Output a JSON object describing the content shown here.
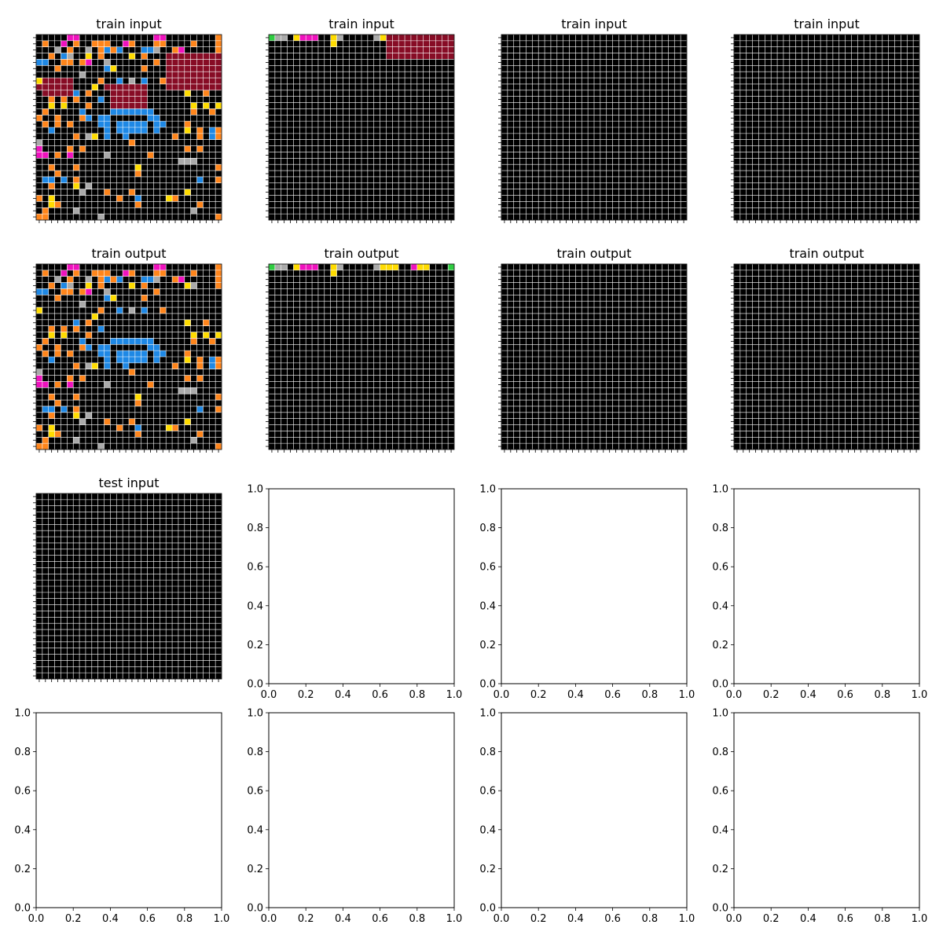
{
  "figure": {
    "palette": [
      "#000000",
      "#1E88E5",
      "#E53935",
      "#2ECC40",
      "#FFDC00",
      "#AAAAAA",
      "#F012BE",
      "#FF851B",
      "#7FDBFF",
      "#870C25"
    ],
    "grid_line_color": "#FFFFFF"
  },
  "chart_data": [
    {
      "type": "heatmap",
      "title": "train input",
      "grid_cells": 30,
      "rows": [
        "000006600000000000066000000007",
        "070060700777006700077000070007",
        "000507005071710001150076000007",
        "007015004070000407000999999999",
        "110077076005000000070999999999",
        "000700000001400007000999999999",
        "000000050000000000000999999999",
        "499999000070010501007999999999",
        "999999000409999999000999999999",
        "099999107000999999000000400700",
        "007070700010999999000000000000",
        "004040007000999999000000040404",
        "070000010000111111100000070070",
        "700700071011000000110000000000",
        "070707000011011111011000700000",
        "001000000001011111010000407017",
        "000000705401001000000070007017",
        "500000000000000700000000000000",
        "600007070000000000000000707000",
        "660706000005000000700000000000",
        "000000000000000000000005550000",
        "007000700000000040000000000007",
        "000700000000000070000000000000",
        "011010700000000000000000001007",
        "007000405000000000000000000000",
        "000000050007000700000000400000",
        "704000000000070010000470000000",
        "004700000000000070000000007000",
        "070000500000000000000000050000",
        "770000000050000000000000000007"
      ]
    },
    {
      "type": "heatmap",
      "title": "train input",
      "grid_cells": 30,
      "rows": [
        "355046660045000005499999999999",
        "000000000040000000099999999999",
        "000000000000000000099999999999",
        "000000000000000000099999999999",
        "000000000000000000000000000000",
        "000000000000000000000000000000",
        "000000000000000000000000000000",
        "000000000000000000000000000000",
        "000000000000000000000000000000",
        "000000000000000000000000000000",
        "000000000000000000000000000000",
        "000000000000000000000000000000",
        "000000000000000000000000000000",
        "000000000000000000000000000000",
        "000000000000000000000000000000",
        "000000000000000000000000000000",
        "000000000000000000000000000000",
        "000000000000000000000000000000",
        "000000000000000000000000000000",
        "000000000000000000000000000000",
        "000000000000000000000000000000",
        "000000000000000000000000000000",
        "000000000000000000000000000000",
        "000000000000000000000000000000",
        "000000000000000000000000000000",
        "000000000000000000000000000000",
        "000000000000000000000000000000",
        "000000000000000000000000000000",
        "000000000000000000000000000000",
        "000000000000000000000000000000"
      ]
    },
    {
      "type": "heatmap",
      "title": "train input",
      "grid_cells": 30,
      "rows": [
        "000000000000000000000000000000",
        "000000000000000000000000000000",
        "000000000000000000000000000000",
        "000000000000000000000000000000",
        "000000000000000000000000000000",
        "000000000000000000000000000000",
        "000000000000000000000000000000",
        "000000000000000000000000000000",
        "000000000000000000000000000000",
        "000000000000000000000000000000",
        "000000000000000000000000000000",
        "000000000000000000000000000000",
        "000000000000000000000000000000",
        "000000000000000000000000000000",
        "000000000000000000000000000000",
        "000000000000000000000000000000",
        "000000000000000000000000000000",
        "000000000000000000000000000000",
        "000000000000000000000000000000",
        "000000000000000000000000000000",
        "000000000000000000000000000000",
        "000000000000000000000000000000",
        "000000000000000000000000000000",
        "000000000000000000000000000000",
        "000000000000000000000000000000",
        "000000000000000000000000000000",
        "000000000000000000000000000000",
        "000000000000000000000000000000",
        "000000000000000000000000000000",
        "000000000000000000000000000000"
      ]
    },
    {
      "type": "heatmap",
      "title": "train input",
      "grid_cells": 30,
      "rows": [
        "000000000000000000000000000000",
        "000000000000000000000000000000",
        "000000000000000000000000000000",
        "000000000000000000000000000000",
        "000000000000000000000000000000",
        "000000000000000000000000000000",
        "000000000000000000000000000000",
        "000000000000000000000000000000",
        "000000000000000000000000000000",
        "000000000000000000000000000000",
        "000000000000000000000000000000",
        "000000000000000000000000000000",
        "000000000000000000000000000000",
        "000000000000000000000000000000",
        "000000000000000000000000000000",
        "000000000000000000000000000000",
        "000000000000000000000000000000",
        "000000000000000000000000000000",
        "000000000000000000000000000000",
        "000000000000000000000000000000",
        "000000000000000000000000000000",
        "000000000000000000000000000000",
        "000000000000000000000000000000",
        "000000000000000000000000000000",
        "000000000000000000000000000000",
        "000000000000000000000000000000",
        "000000000000000000000000000000",
        "000000000000000000000000000000",
        "000000000000000000000000000000",
        "000000000000000000000000000000"
      ]
    },
    {
      "type": "heatmap",
      "title": "train output",
      "grid_cells": 30,
      "rows": [
        "000006600000000000066000000007",
        "070060700777006700077000070007",
        "000507005071710001150076000007",
        "007015004070000407000000450007",
        "110077076005000000070000000000",
        "000700000001400007000000000000",
        "000000050000000000000000000000",
        "400000000070010501007000000000",
        "000000000400000000000000000000",
        "000000107000000000000000400700",
        "007070700010000000000000000000",
        "004040007000000000000000040404",
        "070000010000111111100000070070",
        "700700071011000000110000000000",
        "070707000011011111011000700000",
        "001000000001011111010000407017",
        "000000705401001000000070007017",
        "500000000000000700000000000000",
        "600007070000000000000000707000",
        "660706000005000000700000000000",
        "000000000000000000000005550000",
        "007000700000000040000000000007",
        "000700000000000070000000000000",
        "011010700000000000000000001007",
        "007000405000000000000000000000",
        "000000050007000700000000400000",
        "704000000000070010000470000000",
        "004700000000000070000000007000",
        "070000500000000000000000050000",
        "770000000050000000000000000007"
      ]
    },
    {
      "type": "heatmap",
      "title": "train output",
      "grid_cells": 30,
      "rows": [
        "355046660045000005444006440003",
        "000000000040000000000000000000",
        "000000000000000000000000000000",
        "000000000000000000000000000000",
        "000000000000000000000000000000",
        "000000000000000000000000000000",
        "000000000000000000000000000000",
        "000000000000000000000000000000",
        "000000000000000000000000000000",
        "000000000000000000000000000000",
        "000000000000000000000000000000",
        "000000000000000000000000000000",
        "000000000000000000000000000000",
        "000000000000000000000000000000",
        "000000000000000000000000000000",
        "000000000000000000000000000000",
        "000000000000000000000000000000",
        "000000000000000000000000000000",
        "000000000000000000000000000000",
        "000000000000000000000000000000",
        "000000000000000000000000000000",
        "000000000000000000000000000000",
        "000000000000000000000000000000",
        "000000000000000000000000000000",
        "000000000000000000000000000000",
        "000000000000000000000000000000",
        "000000000000000000000000000000",
        "000000000000000000000000000000",
        "000000000000000000000000000000",
        "000000000000000000000000000000"
      ]
    },
    {
      "type": "heatmap",
      "title": "train output",
      "grid_cells": 30,
      "rows": [
        "000000000000000000000000000000",
        "000000000000000000000000000000",
        "000000000000000000000000000000",
        "000000000000000000000000000000",
        "000000000000000000000000000000",
        "000000000000000000000000000000",
        "000000000000000000000000000000",
        "000000000000000000000000000000",
        "000000000000000000000000000000",
        "000000000000000000000000000000",
        "000000000000000000000000000000",
        "000000000000000000000000000000",
        "000000000000000000000000000000",
        "000000000000000000000000000000",
        "000000000000000000000000000000",
        "000000000000000000000000000000",
        "000000000000000000000000000000",
        "000000000000000000000000000000",
        "000000000000000000000000000000",
        "000000000000000000000000000000",
        "000000000000000000000000000000",
        "000000000000000000000000000000",
        "000000000000000000000000000000",
        "000000000000000000000000000000",
        "000000000000000000000000000000",
        "000000000000000000000000000000",
        "000000000000000000000000000000",
        "000000000000000000000000000000",
        "000000000000000000000000000000",
        "000000000000000000000000000000"
      ]
    },
    {
      "type": "heatmap",
      "title": "train output",
      "grid_cells": 30,
      "rows": [
        "000000000000000000000000000000",
        "000000000000000000000000000000",
        "000000000000000000000000000000",
        "000000000000000000000000000000",
        "000000000000000000000000000000",
        "000000000000000000000000000000",
        "000000000000000000000000000000",
        "000000000000000000000000000000",
        "000000000000000000000000000000",
        "000000000000000000000000000000",
        "000000000000000000000000000000",
        "000000000000000000000000000000",
        "000000000000000000000000000000",
        "000000000000000000000000000000",
        "000000000000000000000000000000",
        "000000000000000000000000000000",
        "000000000000000000000000000000",
        "000000000000000000000000000000",
        "000000000000000000000000000000",
        "000000000000000000000000000000",
        "000000000000000000000000000000",
        "000000000000000000000000000000",
        "000000000000000000000000000000",
        "000000000000000000000000000000",
        "000000000000000000000000000000",
        "000000000000000000000000000000",
        "000000000000000000000000000000",
        "000000000000000000000000000000",
        "000000000000000000000000000000",
        "000000000000000000000000000000"
      ]
    },
    {
      "type": "heatmap",
      "title": "test input",
      "grid_cells": 30,
      "rows": [
        "000000000000000000000000000000",
        "000000000000000000000000000000",
        "000000000000000000000000000000",
        "000000000000000000000000000000",
        "000000000000000000000000000000",
        "000000000000000000000000000000",
        "000000000000000000000000000000",
        "000000000000000000000000000000",
        "000000000000000000000000000000",
        "000000000000000000000000000000",
        "000000000000000000000000000000",
        "000000000000000000000000000000",
        "000000000000000000000000000000",
        "000000000000000000000000000000",
        "000000000000000000000000000000",
        "000000000000000000000000000000",
        "000000000000000000000000000000",
        "000000000000000000000000000000",
        "000000000000000000000000000000",
        "000000000000000000000000000000",
        "000000000000000000000000000000",
        "000000000000000000000000000000",
        "000000000000000000000000000000",
        "000000000000000000000000000000",
        "000000000000000000000000000000",
        "000000000000000000000000000000",
        "000000000000000000000000000000",
        "000000000000000000000000000000",
        "000000000000000000000000000000",
        "000000000000000000000000000000"
      ]
    },
    {
      "type": "empty",
      "xlim": [
        0,
        1
      ],
      "ylim": [
        0,
        1
      ],
      "ticks": [
        "0.0",
        "0.2",
        "0.4",
        "0.6",
        "0.8",
        "1.0"
      ]
    },
    {
      "type": "empty",
      "xlim": [
        0,
        1
      ],
      "ylim": [
        0,
        1
      ],
      "ticks": [
        "0.0",
        "0.2",
        "0.4",
        "0.6",
        "0.8",
        "1.0"
      ]
    },
    {
      "type": "empty",
      "xlim": [
        0,
        1
      ],
      "ylim": [
        0,
        1
      ],
      "ticks": [
        "0.0",
        "0.2",
        "0.4",
        "0.6",
        "0.8",
        "1.0"
      ]
    },
    {
      "type": "empty",
      "xlim": [
        0,
        1
      ],
      "ylim": [
        0,
        1
      ],
      "ticks": [
        "0.0",
        "0.2",
        "0.4",
        "0.6",
        "0.8",
        "1.0"
      ]
    },
    {
      "type": "empty",
      "xlim": [
        0,
        1
      ],
      "ylim": [
        0,
        1
      ],
      "ticks": [
        "0.0",
        "0.2",
        "0.4",
        "0.6",
        "0.8",
        "1.0"
      ]
    },
    {
      "type": "empty",
      "xlim": [
        0,
        1
      ],
      "ylim": [
        0,
        1
      ],
      "ticks": [
        "0.0",
        "0.2",
        "0.4",
        "0.6",
        "0.8",
        "1.0"
      ]
    },
    {
      "type": "empty",
      "xlim": [
        0,
        1
      ],
      "ylim": [
        0,
        1
      ],
      "ticks": [
        "0.0",
        "0.2",
        "0.4",
        "0.6",
        "0.8",
        "1.0"
      ]
    }
  ]
}
